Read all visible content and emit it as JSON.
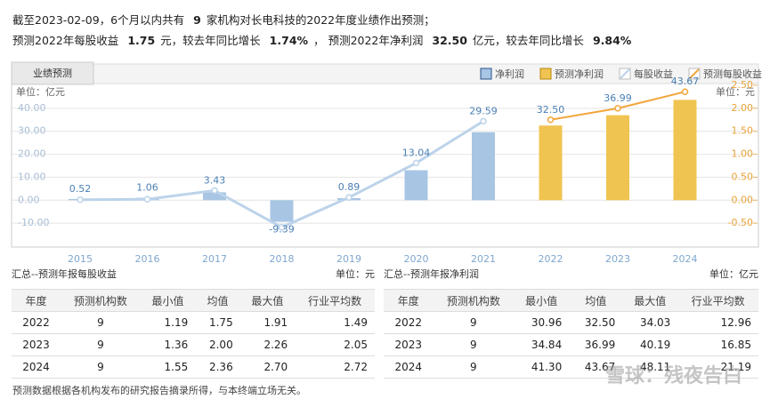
{
  "header": {
    "line1": [
      "截至2023-02-09，6个月以内共有",
      "9",
      "家机构对长电科技的2022年度业绩作出预测；"
    ],
    "line2": [
      "预测2022年每股收益",
      "1.75",
      "元，较去年同比增长",
      "1.74%",
      "，",
      "预测2022年净利润",
      "32.50",
      "亿元，较去年同比增长",
      "9.84%"
    ]
  },
  "chart_data": {
    "type": "bar-line",
    "tab": "业绩预测",
    "y_unit": "单位：亿元",
    "y2_unit": "单位：元",
    "categories": [
      "2015",
      "2016",
      "2017",
      "2018",
      "2019",
      "2020",
      "2021",
      "2022",
      "2023",
      "2024"
    ],
    "series": [
      {
        "name": "净利润",
        "kind": "bar",
        "color": "#a8c6e4",
        "label_color": "#4a7fb5",
        "values": [
          0.52,
          1.06,
          3.43,
          -9.39,
          0.89,
          13.04,
          29.59,
          null,
          null,
          null
        ],
        "value_labels": [
          "0.52",
          "1.06",
          "3.43",
          "-9.39",
          "0.89",
          "13.04",
          "29.59",
          null,
          null,
          null
        ]
      },
      {
        "name": "预测净利润",
        "kind": "bar",
        "color": "#f0c451",
        "label_color": "#4a7fb5",
        "values": [
          null,
          null,
          null,
          null,
          null,
          null,
          null,
          32.5,
          36.99,
          43.67
        ],
        "value_labels": [
          null,
          null,
          null,
          null,
          null,
          null,
          null,
          "32.50",
          "36.99",
          "43.67"
        ]
      },
      {
        "name": "每股收益",
        "kind": "line",
        "axis": "y2",
        "color": "#bcd3ea",
        "values": [
          0.01,
          0.02,
          0.21,
          -0.59,
          0.06,
          0.81,
          1.72,
          null,
          null,
          null
        ]
      },
      {
        "name": "预测每股收益",
        "kind": "line",
        "axis": "y2",
        "color": "#f2a53a",
        "values": [
          null,
          null,
          null,
          null,
          null,
          null,
          null,
          1.75,
          2.0,
          2.36
        ]
      }
    ],
    "ylim": [
      -20,
      50
    ],
    "yticks": [
      {
        "value": -10,
        "label": "-10.00"
      },
      {
        "value": 0,
        "label": "0.00"
      },
      {
        "value": 10,
        "label": "10.00"
      },
      {
        "value": 20,
        "label": "20.00"
      },
      {
        "value": 30,
        "label": "30.00"
      },
      {
        "value": 40,
        "label": "40.00"
      }
    ],
    "y2lim": [
      -1,
      2.5
    ],
    "y2ticks": [
      {
        "value": -0.5,
        "label": "-0.50"
      },
      {
        "value": 0,
        "label": "0.00"
      },
      {
        "value": 0.5,
        "label": "0.50"
      },
      {
        "value": 1,
        "label": "1.00"
      },
      {
        "value": 1.5,
        "label": "1.50"
      },
      {
        "value": 2,
        "label": "2.00"
      },
      {
        "value": 2.5,
        "label": "2.50"
      }
    ],
    "grid": true
  },
  "tables": [
    {
      "title": "汇总--预测年报每股收益",
      "unit": "单位：元",
      "columns": [
        "年度",
        "预测机构数",
        "最小值",
        "均值",
        "最大值",
        "行业平均数"
      ],
      "rows": [
        [
          "2022",
          "9",
          "1.19",
          "1.75",
          "1.91",
          "1.49"
        ],
        [
          "2023",
          "9",
          "1.36",
          "2.00",
          "2.26",
          "2.05"
        ],
        [
          "2024",
          "9",
          "1.55",
          "2.36",
          "2.70",
          "2.72"
        ]
      ]
    },
    {
      "title": "汇总--预测年报净利润",
      "unit": "单位：亿元",
      "columns": [
        "年度",
        "预测机构数",
        "最小值",
        "均值",
        "最大值",
        "行业平均数"
      ],
      "rows": [
        [
          "2022",
          "9",
          "30.96",
          "32.50",
          "34.03",
          "12.96"
        ],
        [
          "2023",
          "9",
          "34.84",
          "36.99",
          "40.19",
          "16.85"
        ],
        [
          "2024",
          "9",
          "41.30",
          "43.67",
          "48.11",
          "21.19"
        ]
      ]
    }
  ],
  "footnote": "预测数据根据各机构发布的研究报告摘录所得，与本终端立场无关。",
  "watermark": "雪球：残夜告白"
}
